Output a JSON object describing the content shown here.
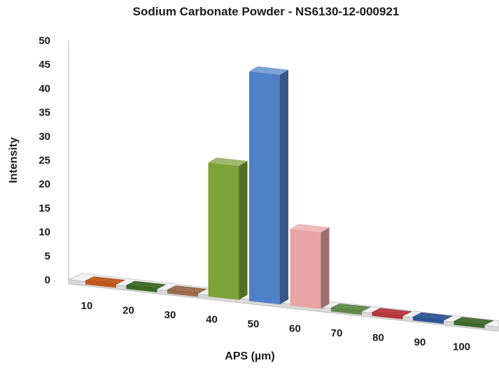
{
  "chart_data": {
    "type": "bar",
    "title": "Sodium Carbonate Powder - NS6130-12-000921",
    "xlabel": "APS (µm)",
    "ylabel": "Intensity",
    "categories": [
      "10",
      "20",
      "30",
      "40",
      "50",
      "60",
      "70",
      "80",
      "90",
      "100"
    ],
    "values": [
      0,
      0,
      0,
      28,
      48,
      16,
      0,
      0,
      0,
      0
    ],
    "ylim": [
      0,
      50
    ],
    "yticks": [
      "0",
      "5",
      "10",
      "15",
      "20",
      "25",
      "30",
      "35",
      "40",
      "45",
      "50"
    ],
    "colors": [
      "#c0581a",
      "#3a6a22",
      "#9b6b4a",
      "#7da23a",
      "#4f81c7",
      "#e8a3a3",
      "#5e8a48",
      "#b6363e",
      "#2f5597",
      "#3f6a2c"
    ],
    "style": "3d-column",
    "grid": false,
    "legend": "none"
  }
}
